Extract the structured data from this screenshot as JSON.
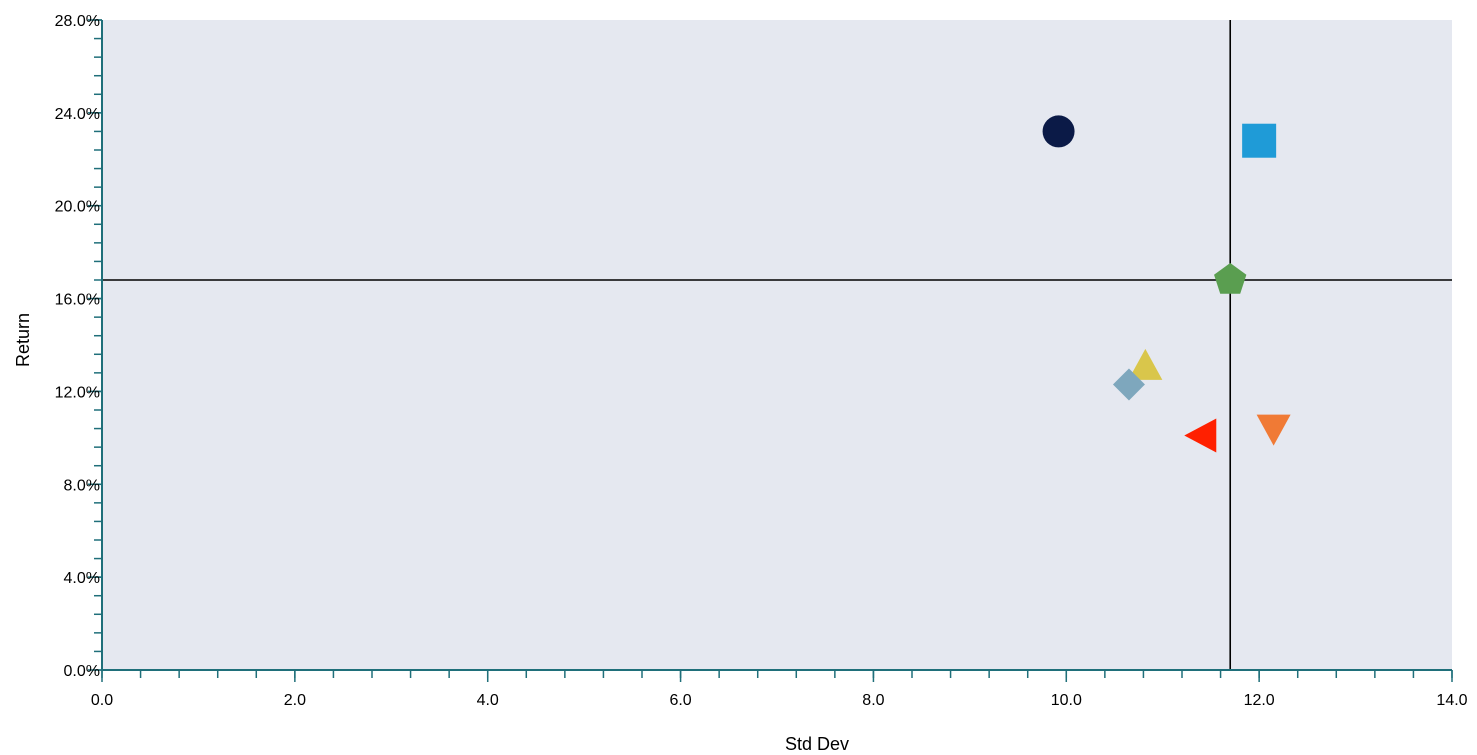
{
  "chart_data": {
    "type": "scatter",
    "title": "",
    "xlabel": "Std Dev",
    "ylabel": "Return",
    "xlim": [
      0,
      14
    ],
    "ylim": [
      0,
      28
    ],
    "x_ticks": [
      0,
      2,
      4,
      6,
      8,
      10,
      12,
      14
    ],
    "x_tick_labels": [
      "0.0",
      "2.0",
      "4.0",
      "6.0",
      "8.0",
      "10.0",
      "12.0",
      "14.0"
    ],
    "x_minor_step": 0.4,
    "y_ticks": [
      0,
      4,
      8,
      12,
      16,
      20,
      24,
      28
    ],
    "y_tick_labels": [
      "0.0%",
      "4.0%",
      "8.0%",
      "12.0%",
      "16.0%",
      "20.0%",
      "24.0%",
      "28.0%"
    ],
    "y_minor_step": 0.8,
    "grid": false,
    "legend": "none",
    "plot_background": "#e5e8f0",
    "axis_color": "#1f6f7a",
    "reference_lines": {
      "x": 11.7,
      "y": 16.8,
      "color": "#000000"
    },
    "points": [
      {
        "x": 9.92,
        "y": 23.2,
        "marker": "circle",
        "color": "#0b1a47"
      },
      {
        "x": 12.0,
        "y": 22.8,
        "marker": "square",
        "color": "#1f9bd7"
      },
      {
        "x": 11.7,
        "y": 16.8,
        "marker": "pentagon",
        "color": "#5a9e50"
      },
      {
        "x": 10.82,
        "y": 13.1,
        "marker": "triangle-up",
        "color": "#d9c64b"
      },
      {
        "x": 10.65,
        "y": 12.3,
        "marker": "diamond",
        "color": "#7ea7bd"
      },
      {
        "x": 11.4,
        "y": 10.1,
        "marker": "triangle-left",
        "color": "#ff2000"
      },
      {
        "x": 12.15,
        "y": 10.4,
        "marker": "triangle-down",
        "color": "#f07a35"
      }
    ]
  }
}
